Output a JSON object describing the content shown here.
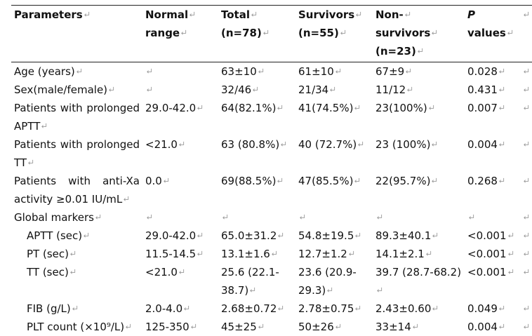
{
  "table": {
    "header": [
      {
        "lines": [
          "Parameters"
        ]
      },
      {
        "lines": [
          "Normal",
          "range"
        ]
      },
      {
        "lines": [
          "Total",
          "(n=78)"
        ]
      },
      {
        "lines": [
          "Survivors",
          "(n=55)"
        ]
      },
      {
        "lines": [
          "Non-",
          "survivors",
          "(n=23)"
        ]
      },
      {
        "italic": "P",
        "rest": " values"
      }
    ],
    "rows": [
      [
        "Age (years)",
        null,
        "63±10",
        "61±10",
        "67±9",
        "0.028"
      ],
      [
        "Sex(male/female)",
        null,
        "32/46",
        "21/34",
        "11/12",
        "0.431"
      ],
      [
        "Patients with prolonged APTT",
        "29.0-42.0",
        "64(82.1%)",
        "41(74.5%)",
        "23(100%)",
        "0.007"
      ],
      [
        "Patients with prolonged TT",
        "<21.0",
        "63 (80.8%)",
        "40 (72.7%)",
        "23 (100%)",
        "0.004"
      ],
      [
        "Patients with anti-Xa activity ≥0.01 IU/mL",
        "0.0",
        "69(88.5%)",
        "47(85.5%)",
        "22(95.7%)",
        "0.268"
      ]
    ],
    "group": {
      "label": "Global markers",
      "rows": [
        [
          "APTT (sec)",
          "29.0-42.0",
          "65.0±31.2",
          "54.8±19.5",
          "89.3±40.1",
          "<0.001"
        ],
        [
          "PT (sec)",
          "11.5-14.5",
          "13.1±1.6",
          "12.7±1.2",
          "14.1±2.1",
          "<0.001"
        ],
        [
          "TT (sec)",
          "<21.0",
          "25.6 (22.1-38.7)",
          "23.6 (20.9-29.3)",
          "39.7 (28.7-68.2)",
          "<0.001"
        ],
        [
          "FIB (g/L)",
          "2.0-4.0",
          "2.68±0.72",
          "2.78±0.75",
          "2.43±0.60",
          "0.049"
        ],
        [
          "PLT count (×10⁹/L)",
          "125-350",
          "45±25",
          "50±26",
          "33±14",
          "0.004"
        ]
      ]
    }
  }
}
